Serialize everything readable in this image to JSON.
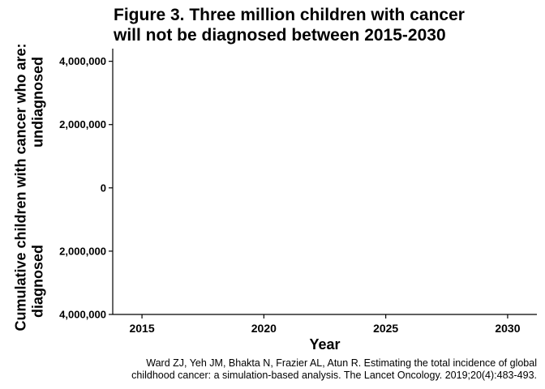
{
  "chart_data": {
    "type": "area",
    "title_line1": "Figure 3. Three million children with cancer",
    "title_line2": "will not be diagnosed between 2015-2030",
    "xlabel": "Year",
    "ylabel_line1": "Cumulative children with cancer who are:",
    "ylabel_upper": "undiagnosed",
    "ylabel_lower": "diagnosed",
    "x_ticks": [
      2015,
      2020,
      2025,
      2030
    ],
    "xlim": [
      2013.8,
      2031.2
    ],
    "y_ticks": [
      {
        "value": 4000000,
        "label": "4,000,000"
      },
      {
        "value": 2000000,
        "label": "2,000,000"
      },
      {
        "value": 0,
        "label": "0"
      },
      {
        "value": -2000000,
        "label": "2,000,000"
      },
      {
        "value": -4000000,
        "label": "4,000,000"
      }
    ],
    "ylim": [
      -4000000,
      4400000
    ],
    "series": [],
    "grid": false
  },
  "caption_line1": "Ward ZJ, Yeh JM, Bhakta N, Frazier AL, Atun R. Estimating the total incidence of global",
  "caption_line2": "childhood cancer: a simulation-based analysis. The Lancet Oncology. 2019;20(4):483-493."
}
